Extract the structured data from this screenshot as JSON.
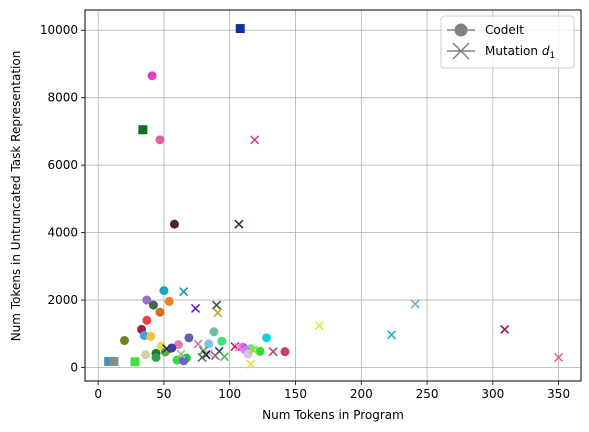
{
  "chart_data": {
    "type": "scatter",
    "xlabel": "Num Tokens in Program",
    "ylabel": "Num Tokens in Untruncated Task Representation",
    "xlim": [
      -10,
      367
    ],
    "ylim": [
      -400,
      10600
    ],
    "xticks": [
      "0",
      "50",
      "100",
      "150",
      "200",
      "250",
      "300",
      "350"
    ],
    "yticks": [
      "0",
      "2000",
      "4000",
      "6000",
      "8000",
      "10000"
    ],
    "grid": true,
    "legend_position": "top-right",
    "legend": [
      {
        "label": "CodeIt",
        "marker": "circle",
        "color": "#808080"
      },
      {
        "label": "Mutation",
        "subscript_label": "1",
        "marker": "x",
        "color": "#808080"
      }
    ],
    "series": [
      {
        "marker": "circle",
        "points": [
          {
            "x": 108,
            "y": 10050,
            "color": "#1030a0",
            "shape": "square"
          },
          {
            "x": 41,
            "y": 8650,
            "color": "#e040c0"
          },
          {
            "x": 34,
            "y": 7050,
            "color": "#107020",
            "shape": "square"
          },
          {
            "x": 47,
            "y": 6750,
            "color": "#e060a0"
          },
          {
            "x": 58,
            "y": 4250,
            "color": "#502040"
          },
          {
            "x": 50,
            "y": 2280,
            "color": "#20a0c0"
          },
          {
            "x": 37,
            "y": 2000,
            "color": "#9070d0"
          },
          {
            "x": 54,
            "y": 1960,
            "color": "#f08020"
          },
          {
            "x": 42,
            "y": 1850,
            "color": "#506050"
          },
          {
            "x": 47,
            "y": 1640,
            "color": "#d07020"
          },
          {
            "x": 37,
            "y": 1400,
            "color": "#f04040"
          },
          {
            "x": 33,
            "y": 1130,
            "color": "#a02050"
          },
          {
            "x": 88,
            "y": 1060,
            "color": "#70c0a0"
          },
          {
            "x": 35,
            "y": 950,
            "color": "#40a0e0"
          },
          {
            "x": 40,
            "y": 920,
            "color": "#f0c040"
          },
          {
            "x": 69,
            "y": 880,
            "color": "#6060b0"
          },
          {
            "x": 128,
            "y": 880,
            "color": "#10d0e0"
          },
          {
            "x": 20,
            "y": 800,
            "color": "#708020"
          },
          {
            "x": 94,
            "y": 780,
            "color": "#40e080"
          },
          {
            "x": 84,
            "y": 700,
            "color": "#80c0f0"
          },
          {
            "x": 61,
            "y": 680,
            "color": "#e080b0"
          },
          {
            "x": 48,
            "y": 640,
            "color": "#e0e040"
          },
          {
            "x": 110,
            "y": 600,
            "color": "#d040e0"
          },
          {
            "x": 56,
            "y": 580,
            "color": "#4040a0"
          },
          {
            "x": 116,
            "y": 560,
            "color": "#60f060"
          },
          {
            "x": 112,
            "y": 520,
            "color": "#c080f0"
          },
          {
            "x": 123,
            "y": 480,
            "color": "#30e030"
          },
          {
            "x": 142,
            "y": 470,
            "color": "#c04070"
          },
          {
            "x": 51,
            "y": 460,
            "color": "#60b030"
          },
          {
            "x": 44,
            "y": 420,
            "color": "#108030"
          },
          {
            "x": 114,
            "y": 400,
            "color": "#e0c0e0"
          },
          {
            "x": 36,
            "y": 380,
            "color": "#d0d0a0"
          },
          {
            "x": 44,
            "y": 300,
            "color": "#30a050"
          },
          {
            "x": 67,
            "y": 280,
            "color": "#20c040"
          },
          {
            "x": 64,
            "y": 230,
            "color": "#90e090"
          },
          {
            "x": 60,
            "y": 220,
            "color": "#40d040"
          },
          {
            "x": 65,
            "y": 200,
            "color": "#7060d0"
          },
          {
            "x": 28,
            "y": 170,
            "color": "#40e040",
            "shape": "square"
          },
          {
            "x": 8,
            "y": 180,
            "color": "#4090c0",
            "shape": "square"
          },
          {
            "x": 12,
            "y": 180,
            "color": "#809090",
            "shape": "square"
          }
        ]
      },
      {
        "marker": "x",
        "points": [
          {
            "x": 119,
            "y": 6750,
            "color": "#e040a0"
          },
          {
            "x": 107,
            "y": 4250,
            "color": "#502040"
          },
          {
            "x": 65,
            "y": 2250,
            "color": "#20a0a0"
          },
          {
            "x": 241,
            "y": 1880,
            "color": "#60b0e0"
          },
          {
            "x": 90,
            "y": 1850,
            "color": "#306030"
          },
          {
            "x": 74,
            "y": 1750,
            "color": "#6020e0"
          },
          {
            "x": 91,
            "y": 1620,
            "color": "#d0a020"
          },
          {
            "x": 168,
            "y": 1240,
            "color": "#d0f040"
          },
          {
            "x": 309,
            "y": 1130,
            "color": "#a01060"
          },
          {
            "x": 223,
            "y": 970,
            "color": "#20b0c0"
          },
          {
            "x": 76,
            "y": 700,
            "color": "#e070b0"
          },
          {
            "x": 104,
            "y": 620,
            "color": "#e02040"
          },
          {
            "x": 107,
            "y": 600,
            "color": "#f080f0"
          },
          {
            "x": 52,
            "y": 560,
            "color": "#303080"
          },
          {
            "x": 118,
            "y": 520,
            "color": "#90e040"
          },
          {
            "x": 80,
            "y": 500,
            "color": "#40a040"
          },
          {
            "x": 92,
            "y": 480,
            "color": "#204080"
          },
          {
            "x": 133,
            "y": 470,
            "color": "#c04070"
          },
          {
            "x": 84,
            "y": 430,
            "color": "#e0a0e0"
          },
          {
            "x": 63,
            "y": 400,
            "color": "#80d080"
          },
          {
            "x": 82,
            "y": 380,
            "color": "#202020"
          },
          {
            "x": 89,
            "y": 350,
            "color": "#807060"
          },
          {
            "x": 96,
            "y": 320,
            "color": "#40c060"
          },
          {
            "x": 79,
            "y": 300,
            "color": "#606060"
          },
          {
            "x": 350,
            "y": 300,
            "color": "#e060a0"
          },
          {
            "x": 116,
            "y": 100,
            "color": "#e0e040"
          }
        ]
      }
    ]
  }
}
